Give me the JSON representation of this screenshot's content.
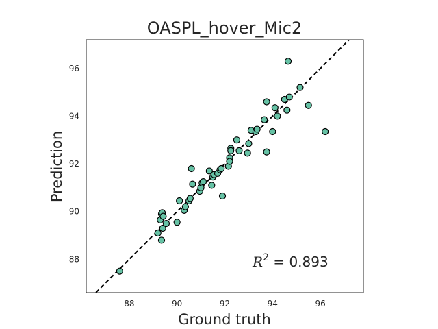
{
  "chart_data": {
    "type": "scatter",
    "title": "OASPL_hover_Mic2",
    "xlabel": "Ground truth",
    "ylabel": "Prediction",
    "xlim": [
      86.2,
      97.8
    ],
    "ylim": [
      86.6,
      97.2
    ],
    "xticks": [
      88,
      90,
      92,
      94,
      96
    ],
    "yticks": [
      88,
      90,
      92,
      94,
      96
    ],
    "grid": false,
    "point_color": "#66c2a5",
    "edge_color": "#000000",
    "reference_line": {
      "style": "dashed",
      "color": "#000000",
      "from": [
        86.2,
        86.2
      ],
      "to": [
        97.8,
        97.8
      ]
    },
    "annotation": {
      "symbol": "R",
      "superscript": "2",
      "text": " = 0.893"
    },
    "points": [
      [
        87.6,
        87.5
      ],
      [
        89.2,
        89.1
      ],
      [
        89.3,
        89.65
      ],
      [
        89.35,
        88.8
      ],
      [
        89.35,
        89.9
      ],
      [
        89.38,
        89.95
      ],
      [
        89.4,
        89.3
      ],
      [
        89.42,
        89.8
      ],
      [
        89.55,
        89.5
      ],
      [
        90.0,
        89.55
      ],
      [
        90.1,
        90.45
      ],
      [
        90.3,
        90.05
      ],
      [
        90.35,
        90.2
      ],
      [
        90.5,
        90.45
      ],
      [
        90.55,
        90.55
      ],
      [
        90.6,
        91.8
      ],
      [
        90.65,
        91.15
      ],
      [
        90.95,
        90.85
      ],
      [
        91.0,
        91.0
      ],
      [
        91.05,
        91.2
      ],
      [
        91.1,
        91.25
      ],
      [
        91.35,
        91.7
      ],
      [
        91.45,
        91.1
      ],
      [
        91.5,
        91.45
      ],
      [
        91.55,
        91.55
      ],
      [
        91.7,
        91.6
      ],
      [
        91.8,
        91.75
      ],
      [
        91.85,
        91.8
      ],
      [
        91.9,
        90.65
      ],
      [
        92.15,
        91.9
      ],
      [
        92.2,
        92.25
      ],
      [
        92.2,
        92.1
      ],
      [
        92.25,
        92.65
      ],
      [
        92.25,
        92.55
      ],
      [
        92.5,
        93.0
      ],
      [
        92.6,
        92.55
      ],
      [
        92.95,
        92.45
      ],
      [
        93.0,
        92.85
      ],
      [
        93.1,
        93.4
      ],
      [
        93.3,
        93.35
      ],
      [
        93.35,
        93.45
      ],
      [
        93.65,
        93.85
      ],
      [
        93.75,
        94.6
      ],
      [
        93.75,
        92.5
      ],
      [
        94.0,
        93.35
      ],
      [
        94.1,
        94.35
      ],
      [
        94.2,
        94.0
      ],
      [
        94.5,
        94.7
      ],
      [
        94.6,
        94.25
      ],
      [
        94.65,
        96.3
      ],
      [
        94.7,
        94.8
      ],
      [
        95.15,
        95.2
      ],
      [
        95.5,
        94.45
      ],
      [
        96.2,
        93.35
      ]
    ]
  }
}
